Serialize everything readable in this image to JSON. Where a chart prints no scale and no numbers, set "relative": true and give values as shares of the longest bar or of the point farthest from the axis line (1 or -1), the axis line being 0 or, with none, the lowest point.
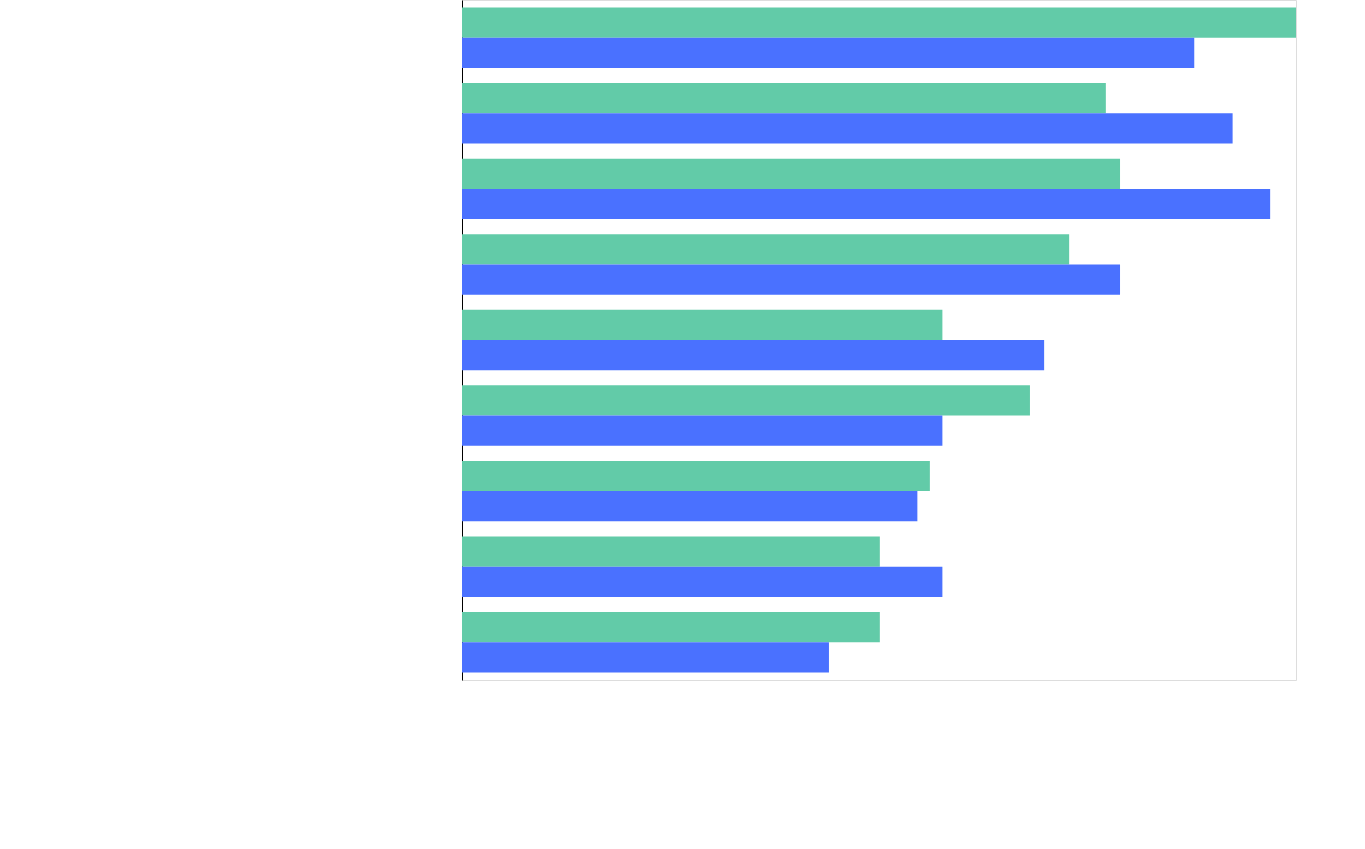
{
  "chart_data": {
    "type": "bar",
    "orientation": "horizontal",
    "relative": true,
    "tick_labels": false,
    "categories": [
      null,
      null,
      null,
      null,
      null,
      null,
      null,
      null,
      null
    ],
    "series": [
      {
        "color": "#62cba8",
        "values": [
          1,
          0.772,
          0.789,
          0.728,
          0.576,
          0.681,
          0.561,
          0.501,
          0.501
        ]
      },
      {
        "color": "#4a71ff",
        "values": [
          0.878,
          0.924,
          0.969,
          0.789,
          0.698,
          0.576,
          0.546,
          0.576,
          0.44
        ]
      }
    ]
  }
}
